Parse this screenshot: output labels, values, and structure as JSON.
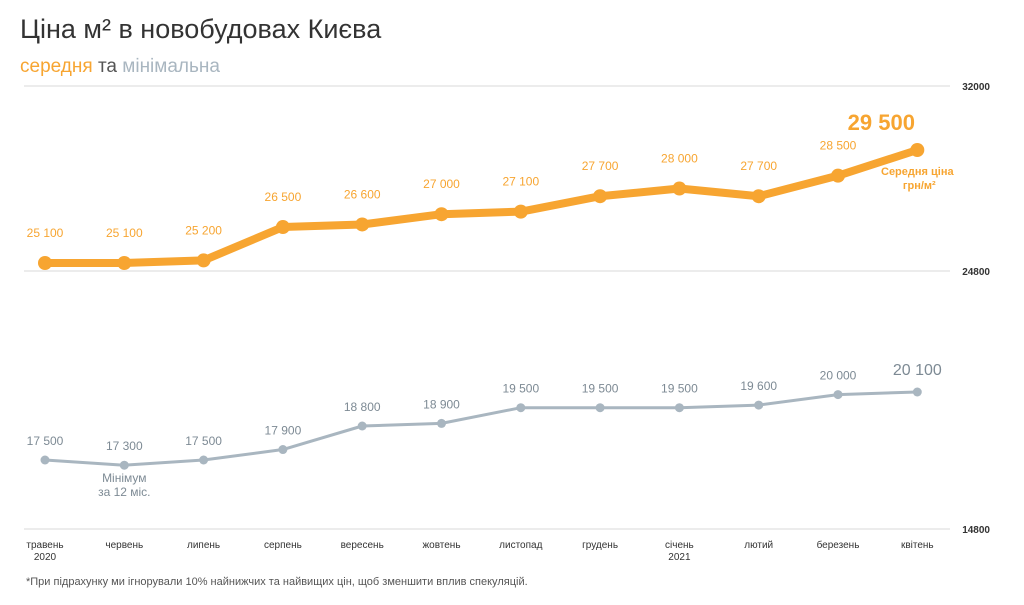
{
  "header": {
    "title": "Ціна м² в новобудовах Києва",
    "subtitle_avg": "середня",
    "subtitle_and": "та",
    "subtitle_min": "мінімальна"
  },
  "footnote": "*При підрахунку ми ігнорували 10% найнижчих та найвищих цін, щоб зменшити вплив спекуляцій.",
  "colors": {
    "average": "#f7a531",
    "minimum": "#a9b6c0",
    "grid": "#d9d9d9",
    "axis_text": "#333333"
  },
  "chart_data": {
    "type": "line",
    "title": "Ціна м² в новобудовах Києва",
    "categories": [
      [
        "травень",
        "2020"
      ],
      [
        "червень",
        ""
      ],
      [
        "липень",
        ""
      ],
      [
        "серпень",
        ""
      ],
      [
        "вересень",
        ""
      ],
      [
        "жовтень",
        ""
      ],
      [
        "листопад",
        ""
      ],
      [
        "грудень",
        ""
      ],
      [
        "січень",
        "2021"
      ],
      [
        "лютий",
        ""
      ],
      [
        "березень",
        ""
      ],
      [
        "квітень",
        ""
      ]
    ],
    "series": [
      {
        "key": "average",
        "values": [
          25100,
          25100,
          25200,
          26500,
          26600,
          27000,
          27100,
          27700,
          28000,
          27700,
          28500,
          29500
        ],
        "labels": [
          "25 100",
          "25 100",
          "25 200",
          "26 500",
          "26 600",
          "27 000",
          "27 100",
          "27 700",
          "28 000",
          "27 700",
          "28 500",
          "29 500"
        ],
        "last_note": [
          "Середня ціна",
          "грн/м²"
        ]
      },
      {
        "key": "minimum",
        "values": [
          17500,
          17300,
          17500,
          17900,
          18800,
          18900,
          19500,
          19500,
          19500,
          19600,
          20000,
          20100
        ],
        "labels": [
          "17 500",
          "17 300",
          "17 500",
          "17 900",
          "18 800",
          "18 900",
          "19 500",
          "19 500",
          "19 500",
          "19 600",
          "20 000",
          "20 100"
        ],
        "min_note": [
          "Мінімум",
          "за 12 міс."
        ],
        "min_index": 1
      }
    ],
    "y_ticks": [
      "32000",
      "24800",
      "14800"
    ],
    "y_axis": "right",
    "grid": true
  }
}
